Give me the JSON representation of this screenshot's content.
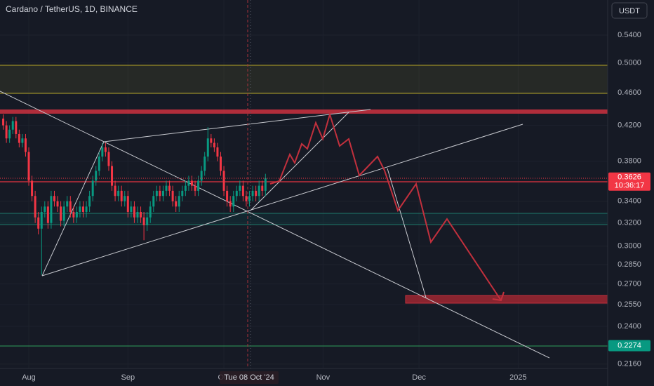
{
  "chart_data": {
    "type": "candlestick",
    "title": "Cardano / TetherUS, 1D, BINANCE",
    "currency": "USDT",
    "log_scale": true,
    "up_color": "#089981",
    "down_color": "#f23645",
    "xlim": [
      "2024-07-23",
      "2025-01-29"
    ],
    "xticks": [
      {
        "value": "2024-08-01",
        "label": "Aug"
      },
      {
        "value": "2024-09-01",
        "label": "Sep"
      },
      {
        "value": "2024-10-01",
        "label": "Oct"
      },
      {
        "value": "2024-11-01",
        "label": "Nov"
      },
      {
        "value": "2024-12-01",
        "label": "Dec"
      },
      {
        "value": "2025-01-01",
        "label": "2025"
      }
    ],
    "ylim": [
      0.2134,
      0.5955
    ],
    "yticks": [
      {
        "value": 0.54,
        "label": "0.5400"
      },
      {
        "value": 0.5,
        "label": "0.5000"
      },
      {
        "value": 0.46,
        "label": "0.4600"
      },
      {
        "value": 0.42,
        "label": "0.4200"
      },
      {
        "value": 0.38,
        "label": "0.3800"
      },
      {
        "value": 0.34,
        "label": "0.3400"
      },
      {
        "value": 0.32,
        "label": "0.3200"
      },
      {
        "value": 0.3,
        "label": "0.3000"
      },
      {
        "value": 0.285,
        "label": "0.2850"
      },
      {
        "value": 0.27,
        "label": "0.2700"
      },
      {
        "value": 0.255,
        "label": "0.2550"
      },
      {
        "value": 0.24,
        "label": "0.2400"
      },
      {
        "value": 0.216,
        "label": "0.2160"
      }
    ],
    "last_price": {
      "value": 0.3626,
      "label": "0.3626"
    },
    "countdown": "10:36:17",
    "level_price": {
      "value": 0.2274,
      "label": "0.2274"
    },
    "crosshair_label": "Tue 08 Oct '24",
    "x": [
      "2024-07-24",
      "2024-07-25",
      "2024-07-26",
      "2024-07-27",
      "2024-07-28",
      "2024-07-29",
      "2024-07-30",
      "2024-07-31",
      "2024-08-01",
      "2024-08-02",
      "2024-08-03",
      "2024-08-04",
      "2024-08-05",
      "2024-08-06",
      "2024-08-07",
      "2024-08-08",
      "2024-08-09",
      "2024-08-10",
      "2024-08-11",
      "2024-08-12",
      "2024-08-13",
      "2024-08-14",
      "2024-08-15",
      "2024-08-16",
      "2024-08-17",
      "2024-08-18",
      "2024-08-19",
      "2024-08-20",
      "2024-08-21",
      "2024-08-22",
      "2024-08-23",
      "2024-08-24",
      "2024-08-25",
      "2024-08-26",
      "2024-08-27",
      "2024-08-28",
      "2024-08-29",
      "2024-08-30",
      "2024-08-31",
      "2024-09-01",
      "2024-09-02",
      "2024-09-03",
      "2024-09-04",
      "2024-09-05",
      "2024-09-06",
      "2024-09-07",
      "2024-09-08",
      "2024-09-09",
      "2024-09-10",
      "2024-09-11",
      "2024-09-12",
      "2024-09-13",
      "2024-09-14",
      "2024-09-15",
      "2024-09-16",
      "2024-09-17",
      "2024-09-18",
      "2024-09-19",
      "2024-09-20",
      "2024-09-21",
      "2024-09-22",
      "2024-09-23",
      "2024-09-24",
      "2024-09-25",
      "2024-09-26",
      "2024-09-27",
      "2024-09-28",
      "2024-09-29",
      "2024-09-30",
      "2024-10-01",
      "2024-10-02",
      "2024-10-03",
      "2024-10-04",
      "2024-10-05",
      "2024-10-06",
      "2024-10-07",
      "2024-10-08",
      "2024-10-09",
      "2024-10-10",
      "2024-10-11",
      "2024-10-12",
      "2024-10-13",
      "2024-10-14"
    ],
    "ohlc": [
      [
        0.428,
        0.433,
        0.415,
        0.42
      ],
      [
        0.42,
        0.425,
        0.4,
        0.405
      ],
      [
        0.405,
        0.42,
        0.4,
        0.415
      ],
      [
        0.415,
        0.43,
        0.41,
        0.425
      ],
      [
        0.425,
        0.43,
        0.405,
        0.41
      ],
      [
        0.41,
        0.415,
        0.395,
        0.4
      ],
      [
        0.4,
        0.41,
        0.395,
        0.405
      ],
      [
        0.405,
        0.41,
        0.385,
        0.39
      ],
      [
        0.39,
        0.395,
        0.355,
        0.36
      ],
      [
        0.36,
        0.365,
        0.34,
        0.345
      ],
      [
        0.345,
        0.35,
        0.32,
        0.325
      ],
      [
        0.325,
        0.33,
        0.31,
        0.315
      ],
      [
        0.315,
        0.335,
        0.277,
        0.33
      ],
      [
        0.33,
        0.34,
        0.325,
        0.335
      ],
      [
        0.335,
        0.34,
        0.315,
        0.32
      ],
      [
        0.32,
        0.35,
        0.315,
        0.345
      ],
      [
        0.345,
        0.35,
        0.335,
        0.34
      ],
      [
        0.34,
        0.345,
        0.33,
        0.335
      ],
      [
        0.335,
        0.34,
        0.317,
        0.322
      ],
      [
        0.322,
        0.34,
        0.317,
        0.335
      ],
      [
        0.335,
        0.345,
        0.33,
        0.34
      ],
      [
        0.34,
        0.345,
        0.325,
        0.33
      ],
      [
        0.33,
        0.335,
        0.32,
        0.325
      ],
      [
        0.325,
        0.335,
        0.32,
        0.33
      ],
      [
        0.33,
        0.34,
        0.325,
        0.335
      ],
      [
        0.335,
        0.34,
        0.325,
        0.33
      ],
      [
        0.33,
        0.34,
        0.325,
        0.335
      ],
      [
        0.335,
        0.35,
        0.33,
        0.345
      ],
      [
        0.345,
        0.365,
        0.34,
        0.36
      ],
      [
        0.36,
        0.375,
        0.355,
        0.37
      ],
      [
        0.37,
        0.39,
        0.365,
        0.385
      ],
      [
        0.385,
        0.4,
        0.38,
        0.395
      ],
      [
        0.395,
        0.4,
        0.385,
        0.39
      ],
      [
        0.39,
        0.395,
        0.37,
        0.375
      ],
      [
        0.375,
        0.38,
        0.35,
        0.355
      ],
      [
        0.355,
        0.36,
        0.34,
        0.345
      ],
      [
        0.345,
        0.355,
        0.34,
        0.35
      ],
      [
        0.35,
        0.355,
        0.335,
        0.34
      ],
      [
        0.34,
        0.35,
        0.335,
        0.345
      ],
      [
        0.345,
        0.35,
        0.325,
        0.33
      ],
      [
        0.33,
        0.34,
        0.325,
        0.335
      ],
      [
        0.335,
        0.34,
        0.32,
        0.325
      ],
      [
        0.325,
        0.335,
        0.32,
        0.33
      ],
      [
        0.33,
        0.335,
        0.32,
        0.325
      ],
      [
        0.325,
        0.33,
        0.305,
        0.318
      ],
      [
        0.318,
        0.33,
        0.313,
        0.325
      ],
      [
        0.325,
        0.34,
        0.32,
        0.335
      ],
      [
        0.335,
        0.35,
        0.33,
        0.345
      ],
      [
        0.345,
        0.355,
        0.34,
        0.35
      ],
      [
        0.35,
        0.355,
        0.34,
        0.345
      ],
      [
        0.345,
        0.355,
        0.34,
        0.35
      ],
      [
        0.35,
        0.36,
        0.345,
        0.355
      ],
      [
        0.355,
        0.36,
        0.345,
        0.35
      ],
      [
        0.35,
        0.355,
        0.335,
        0.34
      ],
      [
        0.34,
        0.345,
        0.33,
        0.335
      ],
      [
        0.335,
        0.35,
        0.33,
        0.345
      ],
      [
        0.345,
        0.355,
        0.34,
        0.35
      ],
      [
        0.35,
        0.36,
        0.345,
        0.355
      ],
      [
        0.355,
        0.365,
        0.35,
        0.36
      ],
      [
        0.36,
        0.365,
        0.35,
        0.355
      ],
      [
        0.355,
        0.36,
        0.345,
        0.35
      ],
      [
        0.35,
        0.365,
        0.345,
        0.36
      ],
      [
        0.36,
        0.375,
        0.355,
        0.37
      ],
      [
        0.37,
        0.39,
        0.365,
        0.385
      ],
      [
        0.385,
        0.418,
        0.38,
        0.405
      ],
      [
        0.405,
        0.41,
        0.395,
        0.4
      ],
      [
        0.4,
        0.405,
        0.39,
        0.395
      ],
      [
        0.395,
        0.4,
        0.38,
        0.385
      ],
      [
        0.385,
        0.39,
        0.365,
        0.37
      ],
      [
        0.37,
        0.375,
        0.345,
        0.35
      ],
      [
        0.35,
        0.355,
        0.335,
        0.34
      ],
      [
        0.34,
        0.345,
        0.33,
        0.335
      ],
      [
        0.335,
        0.35,
        0.33,
        0.345
      ],
      [
        0.345,
        0.355,
        0.34,
        0.35
      ],
      [
        0.35,
        0.36,
        0.345,
        0.355
      ],
      [
        0.355,
        0.36,
        0.34,
        0.345
      ],
      [
        0.345,
        0.35,
        0.335,
        0.34
      ],
      [
        0.34,
        0.35,
        0.335,
        0.345
      ],
      [
        0.345,
        0.355,
        0.34,
        0.35
      ],
      [
        0.35,
        0.355,
        0.34,
        0.345
      ],
      [
        0.345,
        0.36,
        0.34,
        0.355
      ],
      [
        0.355,
        0.36,
        0.345,
        0.35
      ],
      [
        0.35,
        0.367,
        0.345,
        0.3626
      ]
    ]
  }
}
